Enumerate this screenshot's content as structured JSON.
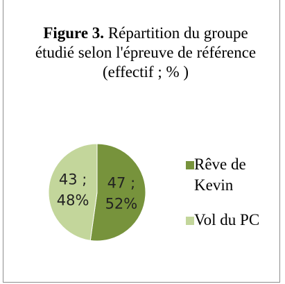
{
  "chart_data": {
    "type": "pie",
    "title": {
      "label": "Figure 3.",
      "text": "Répartition du groupe étudié selon l'épreuve de référence (effectif ; % )"
    },
    "categories": [
      "Rêve de Kevin",
      "Vol du PC"
    ],
    "values": [
      47,
      43
    ],
    "value_labels": [
      "47 ;",
      "43 ;"
    ],
    "percent_labels": [
      "52%",
      "48%"
    ],
    "colors": [
      "#77933c",
      "#c3d69b"
    ],
    "legend": "right"
  }
}
